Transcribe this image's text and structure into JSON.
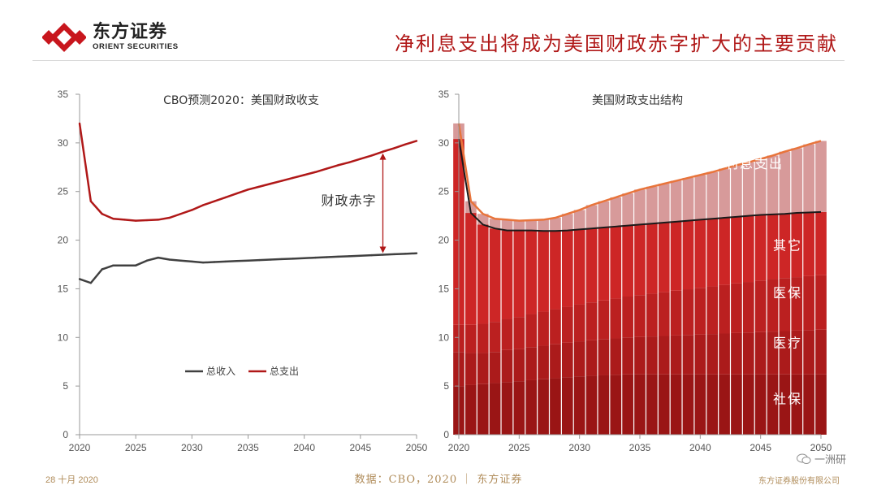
{
  "header": {
    "company_cn": "东方证券",
    "company_en": "ORIENT SECURITIES",
    "headline": "净利息支出将成为美国财政赤字扩大的主要贡献"
  },
  "footer": {
    "date": "28 十月 2020",
    "source": "数据：CBO，2020 ｜ 东方证券",
    "company": "东方证券股份有限公司",
    "watermark": "一洲研"
  },
  "colors": {
    "brand_red": "#b01818",
    "revenue_line": "#404040",
    "outlays_line": "#b01818",
    "total_line_right": "#e8743b",
    "interest_fill": "#d79a9a",
    "band_social_security": "#9a1515",
    "band_healthcare": "#ab1b1b",
    "band_medicare": "#bb2020",
    "band_other": "#cd2626"
  },
  "chart_data": [
    {
      "type": "line",
      "title": "CBO预测2020：美国财政收支",
      "xlim": [
        2020,
        2050
      ],
      "ylim": [
        0,
        35
      ],
      "xticks": [
        "2020",
        "2025",
        "2030",
        "2035",
        "2040",
        "2045",
        "2050"
      ],
      "yticks": [
        "0",
        "5",
        "10",
        "15",
        "20",
        "25",
        "30",
        "35"
      ],
      "grid": false,
      "legend_position": "lower-center",
      "annotation": "财政赤字",
      "x": [
        2020,
        2021,
        2022,
        2023,
        2024,
        2025,
        2026,
        2027,
        2028,
        2029,
        2030,
        2031,
        2032,
        2033,
        2034,
        2035,
        2036,
        2037,
        2038,
        2039,
        2040,
        2041,
        2042,
        2043,
        2044,
        2045,
        2046,
        2047,
        2048,
        2049,
        2050
      ],
      "series": [
        {
          "name": "总收入",
          "values": [
            16.0,
            15.6,
            17.0,
            17.4,
            17.4,
            17.4,
            17.9,
            18.2,
            18.0,
            17.9,
            17.8,
            17.7,
            17.75,
            17.8,
            17.85,
            17.9,
            17.95,
            18.0,
            18.05,
            18.1,
            18.15,
            18.2,
            18.25,
            18.3,
            18.35,
            18.4,
            18.45,
            18.5,
            18.55,
            18.6,
            18.65
          ]
        },
        {
          "name": "总支出",
          "values": [
            32.0,
            24.0,
            22.7,
            22.2,
            22.1,
            22.0,
            22.05,
            22.1,
            22.3,
            22.7,
            23.1,
            23.6,
            24.0,
            24.4,
            24.8,
            25.2,
            25.5,
            25.8,
            26.1,
            26.4,
            26.7,
            27.0,
            27.35,
            27.7,
            28.0,
            28.35,
            28.7,
            29.1,
            29.45,
            29.85,
            30.2
          ]
        }
      ]
    },
    {
      "type": "area",
      "title": "美国财政支出结构",
      "xlim": [
        2020,
        2050
      ],
      "ylim": [
        0,
        35
      ],
      "xticks": [
        "2020",
        "2025",
        "2030",
        "2035",
        "2040",
        "2045",
        "2050"
      ],
      "yticks": [
        "0",
        "5",
        "10",
        "15",
        "20",
        "25",
        "30",
        "35"
      ],
      "grid": false,
      "x": [
        2020,
        2021,
        2022,
        2023,
        2024,
        2025,
        2026,
        2027,
        2028,
        2029,
        2030,
        2031,
        2032,
        2033,
        2034,
        2035,
        2036,
        2037,
        2038,
        2039,
        2040,
        2041,
        2042,
        2043,
        2044,
        2045,
        2046,
        2047,
        2048,
        2049,
        2050
      ],
      "labels": [
        "净利息支出",
        "其它",
        "医保",
        "医疗",
        "社保"
      ],
      "total_outlays": [
        32.0,
        24.0,
        22.7,
        22.2,
        22.1,
        22.0,
        22.05,
        22.1,
        22.3,
        22.7,
        23.1,
        23.6,
        24.0,
        24.4,
        24.8,
        25.2,
        25.5,
        25.8,
        26.1,
        26.4,
        26.7,
        27.0,
        27.35,
        27.7,
        28.0,
        28.35,
        28.7,
        29.1,
        29.45,
        29.85,
        30.2
      ],
      "primary_outlays": [
        30.4,
        22.8,
        21.6,
        21.2,
        21.0,
        21.0,
        21.0,
        20.95,
        20.95,
        21.0,
        21.1,
        21.2,
        21.3,
        21.4,
        21.5,
        21.6,
        21.7,
        21.8,
        21.9,
        22.0,
        22.1,
        22.2,
        22.3,
        22.4,
        22.5,
        22.6,
        22.65,
        22.7,
        22.8,
        22.85,
        22.9
      ],
      "series": [
        {
          "name": "社保",
          "values": [
            5.0,
            5.1,
            5.2,
            5.3,
            5.4,
            5.5,
            5.6,
            5.7,
            5.8,
            5.9,
            6.0,
            6.05,
            6.1,
            6.15,
            6.2,
            6.2,
            6.2,
            6.2,
            6.2,
            6.2,
            6.2,
            6.2,
            6.2,
            6.2,
            6.2,
            6.2,
            6.2,
            6.2,
            6.2,
            6.2,
            6.2
          ]
        },
        {
          "name": "医疗",
          "values": [
            3.5,
            3.3,
            3.2,
            3.2,
            3.3,
            3.3,
            3.4,
            3.45,
            3.5,
            3.55,
            3.6,
            3.65,
            3.7,
            3.75,
            3.8,
            3.85,
            3.9,
            3.95,
            4.0,
            4.05,
            4.1,
            4.15,
            4.2,
            4.25,
            4.3,
            4.35,
            4.4,
            4.45,
            4.5,
            4.55,
            4.6
          ]
        },
        {
          "name": "医保",
          "values": [
            2.8,
            2.9,
            3.0,
            3.1,
            3.2,
            3.3,
            3.4,
            3.5,
            3.6,
            3.7,
            3.8,
            3.9,
            4.0,
            4.1,
            4.2,
            4.3,
            4.4,
            4.5,
            4.6,
            4.7,
            4.8,
            4.9,
            5.0,
            5.1,
            5.2,
            5.3,
            5.4,
            5.45,
            5.5,
            5.55,
            5.6
          ]
        },
        {
          "name": "其它",
          "values": [
            19.1,
            11.5,
            10.2,
            9.6,
            9.1,
            8.9,
            8.6,
            8.3,
            8.05,
            7.85,
            7.7,
            7.6,
            7.5,
            7.4,
            7.3,
            7.25,
            7.2,
            7.15,
            7.1,
            7.05,
            7.0,
            6.95,
            6.9,
            6.85,
            6.8,
            6.75,
            6.65,
            6.6,
            6.6,
            6.55,
            6.5
          ]
        },
        {
          "name": "净利息支出",
          "values": [
            1.6,
            1.2,
            1.1,
            1.0,
            1.1,
            1.0,
            1.05,
            1.15,
            1.35,
            1.7,
            2.0,
            2.4,
            2.7,
            3.0,
            3.3,
            3.6,
            3.8,
            4.0,
            4.2,
            4.4,
            4.6,
            4.8,
            5.05,
            5.3,
            5.5,
            5.75,
            6.05,
            6.4,
            6.65,
            7.0,
            7.3
          ]
        }
      ]
    }
  ]
}
